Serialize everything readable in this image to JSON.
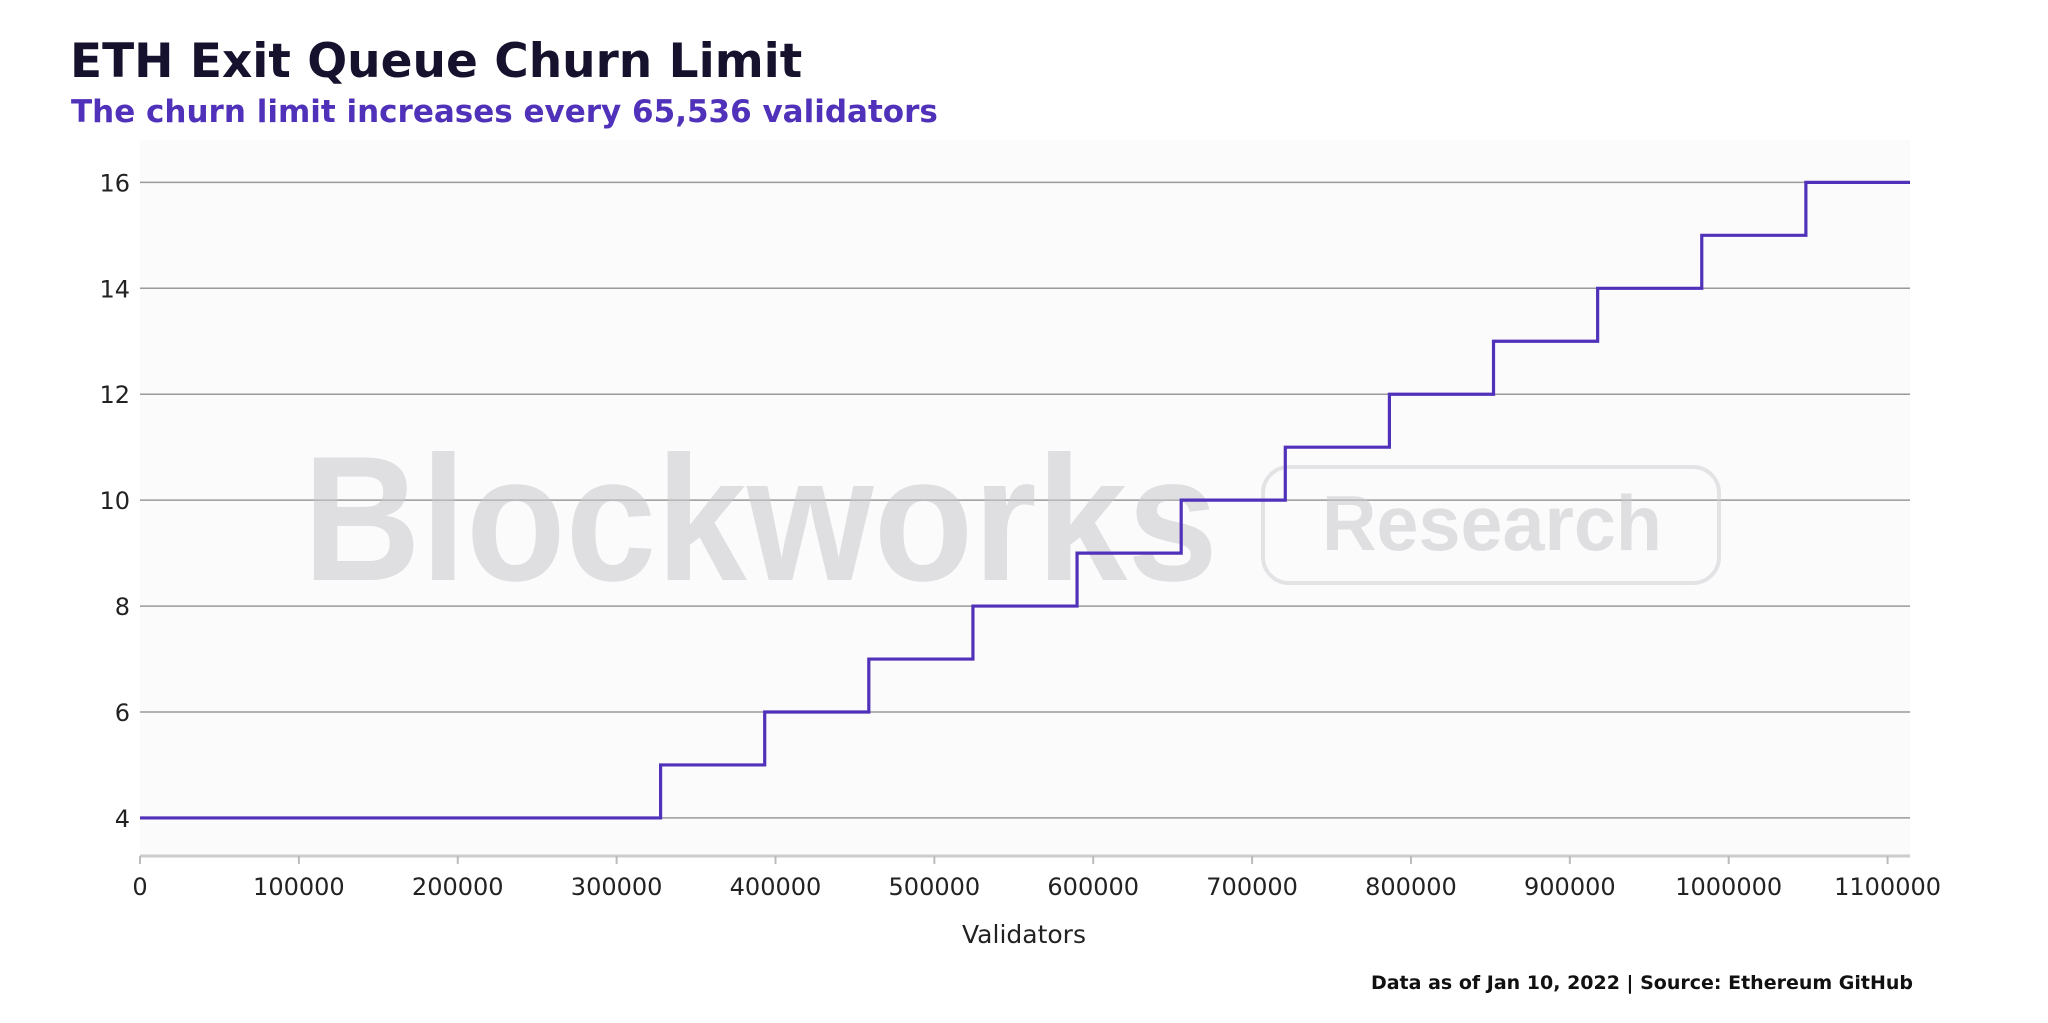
{
  "chart_data": {
    "type": "line",
    "line_shape": "step",
    "title": "ETH Exit Queue Churn Limit",
    "subtitle": "The churn limit increases every 65,536 validators",
    "xlabel": "Validators",
    "ylabel": "",
    "xlim": [
      0,
      1114112
    ],
    "ylim": [
      3.3,
      16.8
    ],
    "x_ticks": [
      0,
      100000,
      200000,
      300000,
      400000,
      500000,
      600000,
      700000,
      800000,
      900000,
      1000000,
      1100000
    ],
    "x_tick_labels": [
      "0",
      "100000",
      "200000",
      "300000",
      "400000",
      "500000",
      "600000",
      "700000",
      "800000",
      "900000",
      "1000000",
      "1100000"
    ],
    "y_ticks": [
      4,
      6,
      8,
      10,
      12,
      14,
      16
    ],
    "y_tick_labels": [
      "4",
      "6",
      "8",
      "10",
      "12",
      "14",
      "16"
    ],
    "grid": "horizontal",
    "legend": "none",
    "series": [
      {
        "color": "#5031b9",
        "x": [
          0,
          327680,
          393216,
          458752,
          524288,
          589824,
          655360,
          720896,
          786432,
          851968,
          917504,
          983040,
          1048576,
          1114112
        ],
        "y": [
          4,
          5,
          6,
          7,
          8,
          9,
          10,
          11,
          12,
          13,
          14,
          15,
          16,
          16
        ]
      }
    ],
    "source_note": "Data as of Jan 10, 2022 | Source: Ethereum GitHub"
  },
  "watermark": {
    "brand": "Blockworks",
    "tag": "Research"
  },
  "colors": {
    "line": "#5031b9",
    "title": "#16122e",
    "subtitle": "#5031b9",
    "grid": "#9a9a9a",
    "axis": "#cccccc",
    "plot_bg": "#fcfbfc"
  }
}
